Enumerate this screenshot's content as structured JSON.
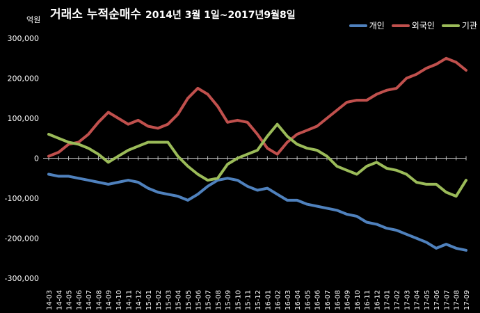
{
  "chart_data": {
    "type": "line",
    "title_main": "거래소 누적순매수",
    "title_period": "2014년 3월 1일~2017년9월8일",
    "unit_label": "억원",
    "ylim": [
      -300000,
      300000
    ],
    "yticks": [
      300000,
      200000,
      100000,
      0,
      -100000,
      -200000,
      -300000
    ],
    "ytick_labels": [
      "300,000",
      "200,000",
      "100,000",
      "0",
      "-100,000",
      "-200,000",
      "-300,000"
    ],
    "x_labels": [
      "14-03",
      "14-04",
      "14-05",
      "14-06",
      "14-07",
      "14-08",
      "14-09",
      "14-10",
      "14-11",
      "14-12",
      "15-01",
      "15-02",
      "15-03",
      "15-04",
      "15-05",
      "15-06",
      "15-07",
      "15-08",
      "15-09",
      "15-10",
      "15-11",
      "15-12",
      "16-01",
      "16-02",
      "16-03",
      "16-04",
      "16-05",
      "16-06",
      "16-07",
      "16-08",
      "16-09",
      "16-10",
      "16-11",
      "16-12",
      "17-01",
      "17-02",
      "17-03",
      "17-04",
      "17-05",
      "17-06",
      "17-07",
      "17-08",
      "17-09"
    ],
    "grid": false,
    "legend_position": "top-right",
    "series": [
      {
        "name": "개인",
        "color": "#4f81bd",
        "values": [
          -40000,
          -45000,
          -45000,
          -50000,
          -55000,
          -60000,
          -65000,
          -60000,
          -55000,
          -60000,
          -75000,
          -85000,
          -90000,
          -95000,
          -105000,
          -90000,
          -70000,
          -55000,
          -50000,
          -55000,
          -70000,
          -80000,
          -75000,
          -90000,
          -105000,
          -105000,
          -115000,
          -120000,
          -125000,
          -130000,
          -140000,
          -145000,
          -160000,
          -165000,
          -175000,
          -180000,
          -190000,
          -200000,
          -210000,
          -225000,
          -215000,
          -225000,
          -230000
        ]
      },
      {
        "name": "외국인",
        "color": "#c0504d",
        "values": [
          5000,
          15000,
          35000,
          40000,
          60000,
          90000,
          115000,
          100000,
          85000,
          95000,
          80000,
          75000,
          85000,
          110000,
          150000,
          175000,
          160000,
          130000,
          90000,
          95000,
          90000,
          60000,
          25000,
          10000,
          40000,
          60000,
          70000,
          80000,
          100000,
          120000,
          140000,
          145000,
          145000,
          160000,
          170000,
          175000,
          200000,
          210000,
          225000,
          235000,
          250000,
          240000,
          220000
        ]
      },
      {
        "name": "기관",
        "color": "#9bbb59",
        "values": [
          60000,
          50000,
          40000,
          35000,
          25000,
          10000,
          -10000,
          5000,
          20000,
          30000,
          40000,
          40000,
          40000,
          5000,
          -20000,
          -40000,
          -55000,
          -50000,
          -15000,
          0,
          10000,
          20000,
          55000,
          85000,
          55000,
          35000,
          25000,
          20000,
          5000,
          -20000,
          -30000,
          -40000,
          -20000,
          -10000,
          -25000,
          -30000,
          -40000,
          -60000,
          -65000,
          -65000,
          -85000,
          -95000,
          -55000
        ]
      }
    ]
  }
}
